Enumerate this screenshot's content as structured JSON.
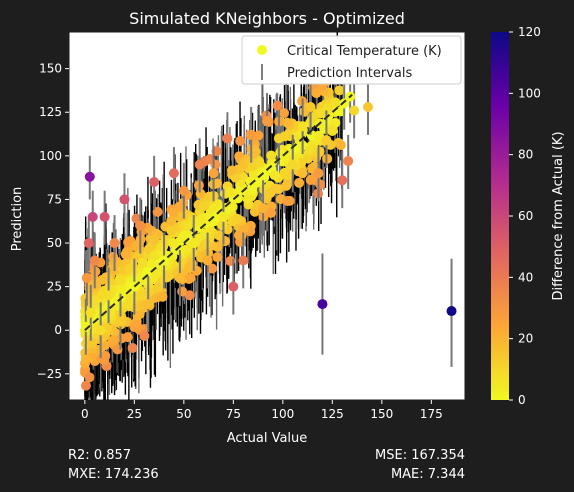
{
  "chart_data": {
    "type": "scatter",
    "title": "Simulated KNeighbors - Optimized",
    "xlabel": "Actual Value",
    "ylabel": "Prediction",
    "xlim": [
      -8,
      192
    ],
    "ylim": [
      -40,
      171
    ],
    "xticks": [
      0,
      25,
      50,
      75,
      100,
      125,
      150,
      175
    ],
    "yticks": [
      -25,
      0,
      25,
      50,
      75,
      100,
      125,
      150
    ],
    "grid": false,
    "legend_position": "top-right",
    "legend": [
      {
        "label": "Critical Temperature (K)",
        "marker": "circle",
        "color": "#f0f921"
      },
      {
        "label": "Prediction Intervals",
        "marker": "vertical-line",
        "color": "#808080"
      }
    ],
    "reference_line": {
      "style": "dashed",
      "color": "#2b2b2b",
      "x": [
        0,
        135
      ],
      "y": [
        0,
        135
      ]
    },
    "colorbar": {
      "label": "Difference from Actual (K)",
      "range": [
        0,
        120
      ],
      "ticks": [
        0,
        20,
        40,
        60,
        80,
        100,
        120
      ],
      "colormap": "plasma_r",
      "stops": [
        "#f0f921",
        "#fca636",
        "#e16462",
        "#b12a90",
        "#6a00a8",
        "#0d0887"
      ]
    },
    "series": [
      {
        "name": "Critical Temperature (K)",
        "points": [
          {
            "x": 185.2,
            "y": 11,
            "diff": 174.2,
            "interval": [
              -21,
              41
            ]
          },
          {
            "x": 120.0,
            "y": 15,
            "diff": 105.0,
            "interval": [
              -14,
              44
            ]
          },
          {
            "x": 2.5,
            "y": 88,
            "diff": 85.5,
            "interval": [
              75,
              100
            ]
          },
          {
            "x": 143.0,
            "y": 128,
            "diff": 15.0,
            "interval": [
              112,
              145
            ]
          },
          {
            "x": 136.0,
            "y": 126,
            "diff": 10.0,
            "interval": [
              110,
              142
            ]
          },
          {
            "x": 134.0,
            "y": 134,
            "diff": 0.0,
            "interval": [
              119,
              150
            ]
          },
          {
            "x": 131.0,
            "y": 130,
            "diff": 1.0,
            "interval": [
              115,
              147
            ]
          },
          {
            "x": 130.0,
            "y": 86,
            "diff": 44.0,
            "interval": [
              70,
              103
            ]
          },
          {
            "x": 133.0,
            "y": 97,
            "diff": 36.0,
            "interval": [
              81,
              112
            ]
          },
          {
            "x": 118.0,
            "y": 90,
            "diff": 28.0,
            "interval": [
              74,
              105
            ]
          },
          {
            "x": 122.0,
            "y": 109,
            "diff": 13.0,
            "interval": [
              93,
              126
            ]
          },
          {
            "x": 114.0,
            "y": 128,
            "diff": 14.0,
            "interval": [
              112,
              142
            ]
          },
          {
            "x": 110.0,
            "y": 117,
            "diff": 7.0,
            "interval": [
              101,
              133
            ]
          },
          {
            "x": 105.0,
            "y": 95,
            "diff": 10.0,
            "interval": [
              79,
              112
            ]
          },
          {
            "x": 98.0,
            "y": 110,
            "diff": 12.0,
            "interval": [
              95,
              126
            ]
          },
          {
            "x": 92.0,
            "y": 120,
            "diff": 28.0,
            "interval": [
              105,
              136
            ]
          },
          {
            "x": 90.0,
            "y": 70,
            "diff": 20.0,
            "interval": [
              54,
              86
            ]
          },
          {
            "x": 84.0,
            "y": 112,
            "diff": 28.0,
            "interval": [
              96,
              128
            ]
          },
          {
            "x": 80.0,
            "y": 40,
            "diff": 40.0,
            "interval": [
              24,
              56
            ]
          },
          {
            "x": 75.0,
            "y": 25,
            "diff": 50.0,
            "interval": [
              9,
              41
            ]
          },
          {
            "x": 72.0,
            "y": 110,
            "diff": 38.0,
            "interval": [
              94,
              125
            ]
          },
          {
            "x": 70.0,
            "y": 65,
            "diff": 5.0,
            "interval": [
              49,
              81
            ]
          },
          {
            "x": 65.0,
            "y": 90,
            "diff": 25.0,
            "interval": [
              74,
              106
            ]
          },
          {
            "x": 62.0,
            "y": 40,
            "diff": 22.0,
            "interval": [
              24,
              56
            ]
          },
          {
            "x": 58.0,
            "y": 95,
            "diff": 37.0,
            "interval": [
              79,
              110
            ]
          },
          {
            "x": 55.0,
            "y": 50,
            "diff": 5.0,
            "interval": [
              34,
              66
            ]
          },
          {
            "x": 50.0,
            "y": 80,
            "diff": 30.0,
            "interval": [
              64,
              96
            ]
          },
          {
            "x": 48.0,
            "y": 30,
            "diff": 18.0,
            "interval": [
              14,
              46
            ]
          },
          {
            "x": 45.0,
            "y": 90,
            "diff": 45.0,
            "interval": [
              74,
              105
            ]
          },
          {
            "x": 40.0,
            "y": 40,
            "diff": 0.0,
            "interval": [
              24,
              56
            ]
          },
          {
            "x": 35.0,
            "y": 85,
            "diff": 50.0,
            "interval": [
              69,
              100
            ]
          },
          {
            "x": 32.0,
            "y": 15,
            "diff": 17.0,
            "interval": [
              -1,
              31
            ]
          },
          {
            "x": 28.0,
            "y": 60,
            "diff": 32.0,
            "interval": [
              44,
              76
            ]
          },
          {
            "x": 25.0,
            "y": 25,
            "diff": 0.0,
            "interval": [
              9,
              41
            ]
          },
          {
            "x": 20.0,
            "y": 75,
            "diff": 55.0,
            "interval": [
              59,
              90
            ]
          },
          {
            "x": 18.0,
            "y": 5,
            "diff": 13.0,
            "interval": [
              -11,
              21
            ]
          },
          {
            "x": 15.0,
            "y": 50,
            "diff": 35.0,
            "interval": [
              34,
              66
            ]
          },
          {
            "x": 12.0,
            "y": 20,
            "diff": 8.0,
            "interval": [
              4,
              36
            ]
          },
          {
            "x": 10.0,
            "y": 65,
            "diff": 55.0,
            "interval": [
              49,
              80
            ]
          },
          {
            "x": 8.0,
            "y": 0,
            "diff": 8.0,
            "interval": [
              -16,
              16
            ]
          },
          {
            "x": 5.0,
            "y": 40,
            "diff": 35.0,
            "interval": [
              24,
              56
            ]
          },
          {
            "x": 4.0,
            "y": 65,
            "diff": 61.0,
            "interval": [
              49,
              80
            ]
          },
          {
            "x": 3.0,
            "y": 10,
            "diff": 7.0,
            "interval": [
              -6,
              26
            ]
          },
          {
            "x": 2.0,
            "y": 50,
            "diff": 48.0,
            "interval": [
              34,
              66
            ]
          },
          {
            "x": 1.0,
            "y": 30,
            "diff": 29.0,
            "interval": [
              14,
              46
            ]
          },
          {
            "x": 0.5,
            "y": 2,
            "diff": 1.5,
            "interval": [
              -14,
              18
            ]
          }
        ]
      }
    ]
  },
  "metrics": {
    "r2": "R2: 0.857",
    "mxe": "MXE: 174.236",
    "mse": "MSE: 167.354",
    "mae": "MAE: 7.344"
  }
}
